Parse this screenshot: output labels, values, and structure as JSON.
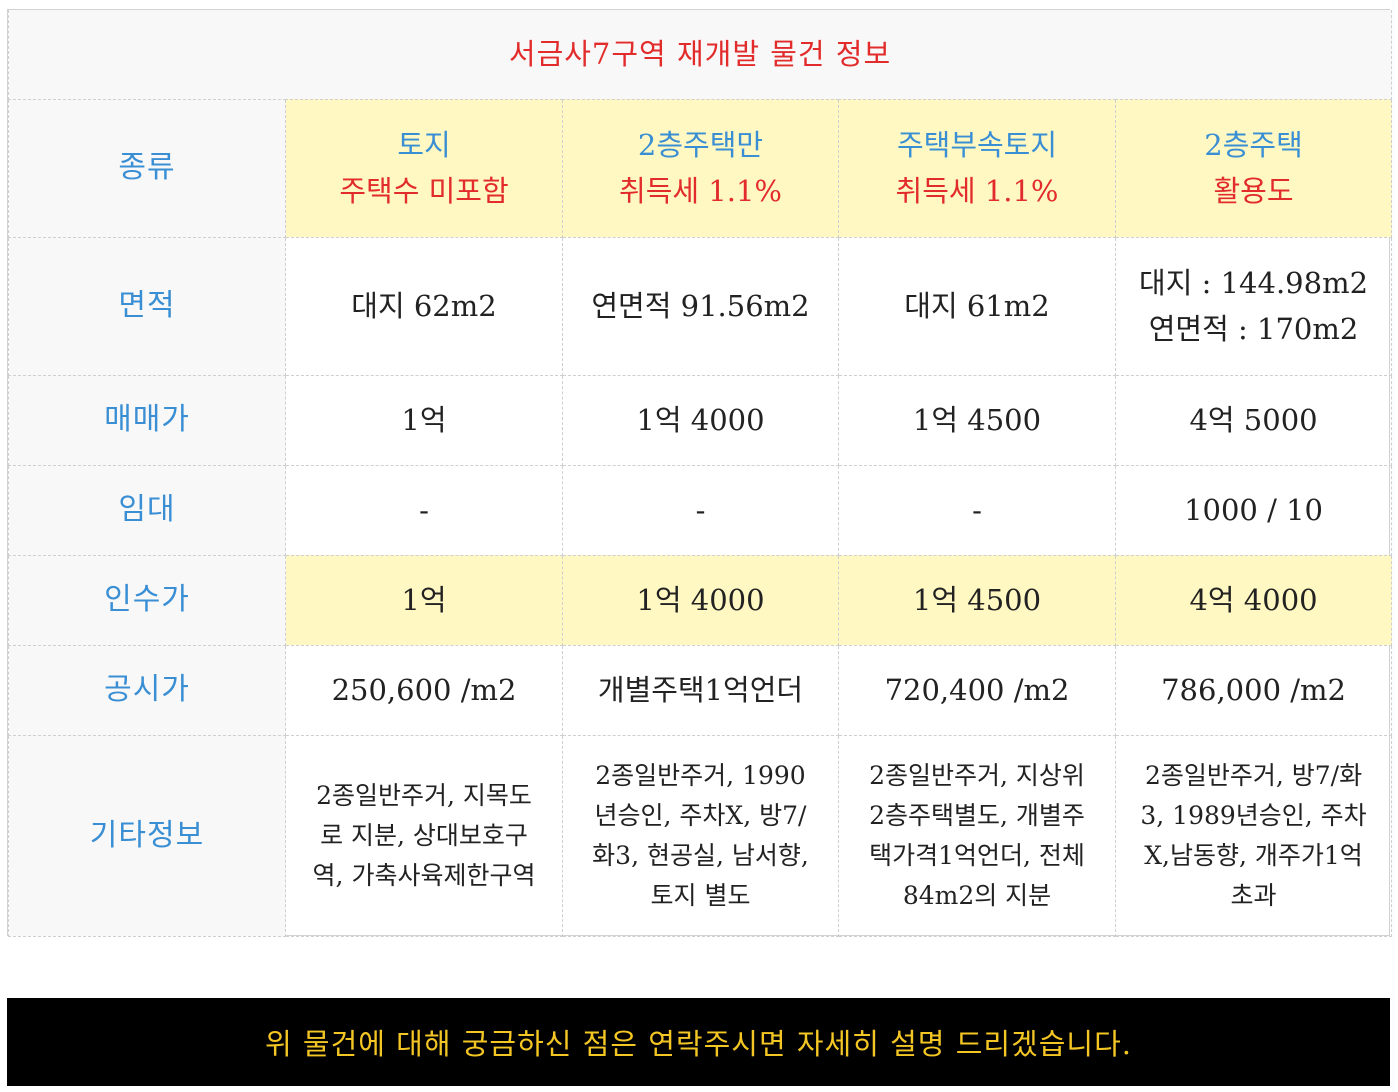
{
  "table": {
    "title": "서금사7구역 재개발 물건 정보",
    "labels": {
      "type": "종류",
      "area": "면적",
      "sale_price": "매매가",
      "rent": "임대",
      "acquisition_price": "인수가",
      "official_price": "공시가",
      "other_info": "기타정보"
    },
    "columns": [
      {
        "type_main": "토지",
        "type_note": "주택수 미포함",
        "area_line1": "대지 62m2",
        "area_line2": "",
        "sale_price": "1억",
        "rent": "-",
        "acquisition_price": "1억",
        "official_price": "250,600 /m2",
        "other_info": "2종일반주거, 지목도로 지분, 상대보호구역, 가축사육제한구역"
      },
      {
        "type_main": "2층주택만",
        "type_note": "취득세 1.1%",
        "area_line1": "연면적 91.56m2",
        "area_line2": "",
        "sale_price": "1억 4000",
        "rent": "-",
        "acquisition_price": "1억 4000",
        "official_price": "개별주택1억언더",
        "other_info": "2종일반주거, 1990년승인, 주차X, 방7/화3, 현공실, 남서향, 토지 별도"
      },
      {
        "type_main": "주택부속토지",
        "type_note": "취득세 1.1%",
        "area_line1": "대지 61m2",
        "area_line2": "",
        "sale_price": "1억 4500",
        "rent": "-",
        "acquisition_price": "1억 4500",
        "official_price": "720,400 /m2",
        "other_info": "2종일반주거, 지상위2층주택별도, 개별주택가격1억언더, 전체84m2의 지분"
      },
      {
        "type_main": "2층주택",
        "type_note": "활용도",
        "area_line1": "대지 : 144.98m2",
        "area_line2": "연면적 : 170m2",
        "sale_price": "4억 5000",
        "rent": "1000 / 10",
        "acquisition_price": "4억 4000",
        "official_price": "786,000 /m2",
        "other_info": "2종일반주거, 방7/화3, 1989년승인, 주차X,남동향, 개주가1억초과"
      }
    ]
  },
  "footer": {
    "message": "위 물건에 대해 궁금하신 점은 연락주시면 자세히 설명 드리겠습니다."
  }
}
